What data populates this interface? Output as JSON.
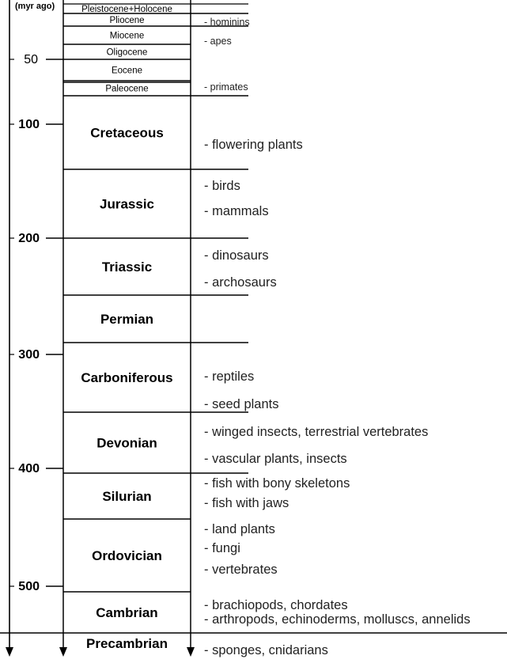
{
  "axis": {
    "unit_label": "(myr ago)",
    "ticks": [
      {
        "value": 50,
        "label": "50"
      },
      {
        "value": 100,
        "label": "100"
      },
      {
        "value": 200,
        "label": "200"
      },
      {
        "value": 300,
        "label": "300"
      },
      {
        "value": 400,
        "label": "400"
      },
      {
        "value": 500,
        "label": "500"
      }
    ]
  },
  "periods": [
    {
      "id": "pleistocene-holocene",
      "label": "Pleistocene+Holocene",
      "start": 0,
      "end": 2.6,
      "bold": false
    },
    {
      "id": "pliocene",
      "label": "Pliocene",
      "start": 2.6,
      "end": 5.3,
      "bold": false
    },
    {
      "id": "miocene",
      "label": "Miocene",
      "start": 5.3,
      "end": 23,
      "bold": false
    },
    {
      "id": "oligocene",
      "label": "Oligocene",
      "start": 23,
      "end": 34,
      "bold": false
    },
    {
      "id": "eocene",
      "label": "Eocene",
      "start": 34,
      "end": 56,
      "bold": false
    },
    {
      "id": "paleocene",
      "label": "Paleocene",
      "start": 56,
      "end": 66,
      "bold": false
    },
    {
      "id": "cretaceous",
      "label": "Cretaceous",
      "start": 66,
      "end": 145,
      "bold": true
    },
    {
      "id": "jurassic",
      "label": "Jurassic",
      "start": 145,
      "end": 201,
      "bold": true
    },
    {
      "id": "triassic",
      "label": "Triassic",
      "start": 201,
      "end": 252,
      "bold": true
    },
    {
      "id": "permian",
      "label": "Permian",
      "start": 252,
      "end": 299,
      "bold": true
    },
    {
      "id": "carboniferous",
      "label": "Carboniferous",
      "start": 299,
      "end": 359,
      "bold": true
    },
    {
      "id": "devonian",
      "label": "Devonian",
      "start": 359,
      "end": 419,
      "bold": true
    },
    {
      "id": "silurian",
      "label": "Silurian",
      "start": 419,
      "end": 444,
      "bold": true
    },
    {
      "id": "ordovician",
      "label": "Ordovician",
      "start": 444,
      "end": 485,
      "bold": true
    },
    {
      "id": "cambrian",
      "label": "Cambrian",
      "start": 485,
      "end": 541,
      "bold": true
    },
    {
      "id": "precambrian",
      "label": "Precambrian",
      "start": 541,
      "end": null,
      "bold": true
    }
  ],
  "events": [
    {
      "text": "- hominins",
      "age": 3,
      "small": true
    },
    {
      "text": "- apes",
      "age": 18,
      "small": true
    },
    {
      "text": "- primates",
      "age": 60,
      "small": true
    },
    {
      "text": "- flowering plants",
      "age": 125,
      "small": false
    },
    {
      "text": "- birds",
      "age": 156,
      "small": false
    },
    {
      "text": "- mammals",
      "age": 178,
      "small": false
    },
    {
      "text": "- dinosaurs",
      "age": 232,
      "small": false
    },
    {
      "text": "- archosaurs",
      "age": 256,
      "small": false
    },
    {
      "text": "- reptiles",
      "age": 319,
      "small": false
    },
    {
      "text": "- seed plants",
      "age": 344,
      "small": false
    },
    {
      "text": "- winged insects, terrestrial vertebrates",
      "age": 369,
      "small": false
    },
    {
      "text": "- vascular plants, insects",
      "age": 393,
      "small": false
    },
    {
      "text": "- fish with bony skeletons",
      "age": 424,
      "small": false
    },
    {
      "text": "- fish with jaws",
      "age": 442,
      "small": false
    },
    {
      "text": "- land plants",
      "age": 460,
      "small": false
    },
    {
      "text": "- fungi",
      "age": 476,
      "small": false
    },
    {
      "text": "- vertebrates",
      "age": 495,
      "small": false
    },
    {
      "text": "- brachiopods, chordates",
      "age": 525,
      "small": false
    },
    {
      "text": "- arthropods, echinoderms, molluscs, annelids",
      "age": 538,
      "small": false
    },
    {
      "text": "- sponges, cnidarians",
      "age": 568,
      "small": false
    }
  ],
  "event_boundaries": [
    145,
    201,
    252,
    299,
    359
  ]
}
